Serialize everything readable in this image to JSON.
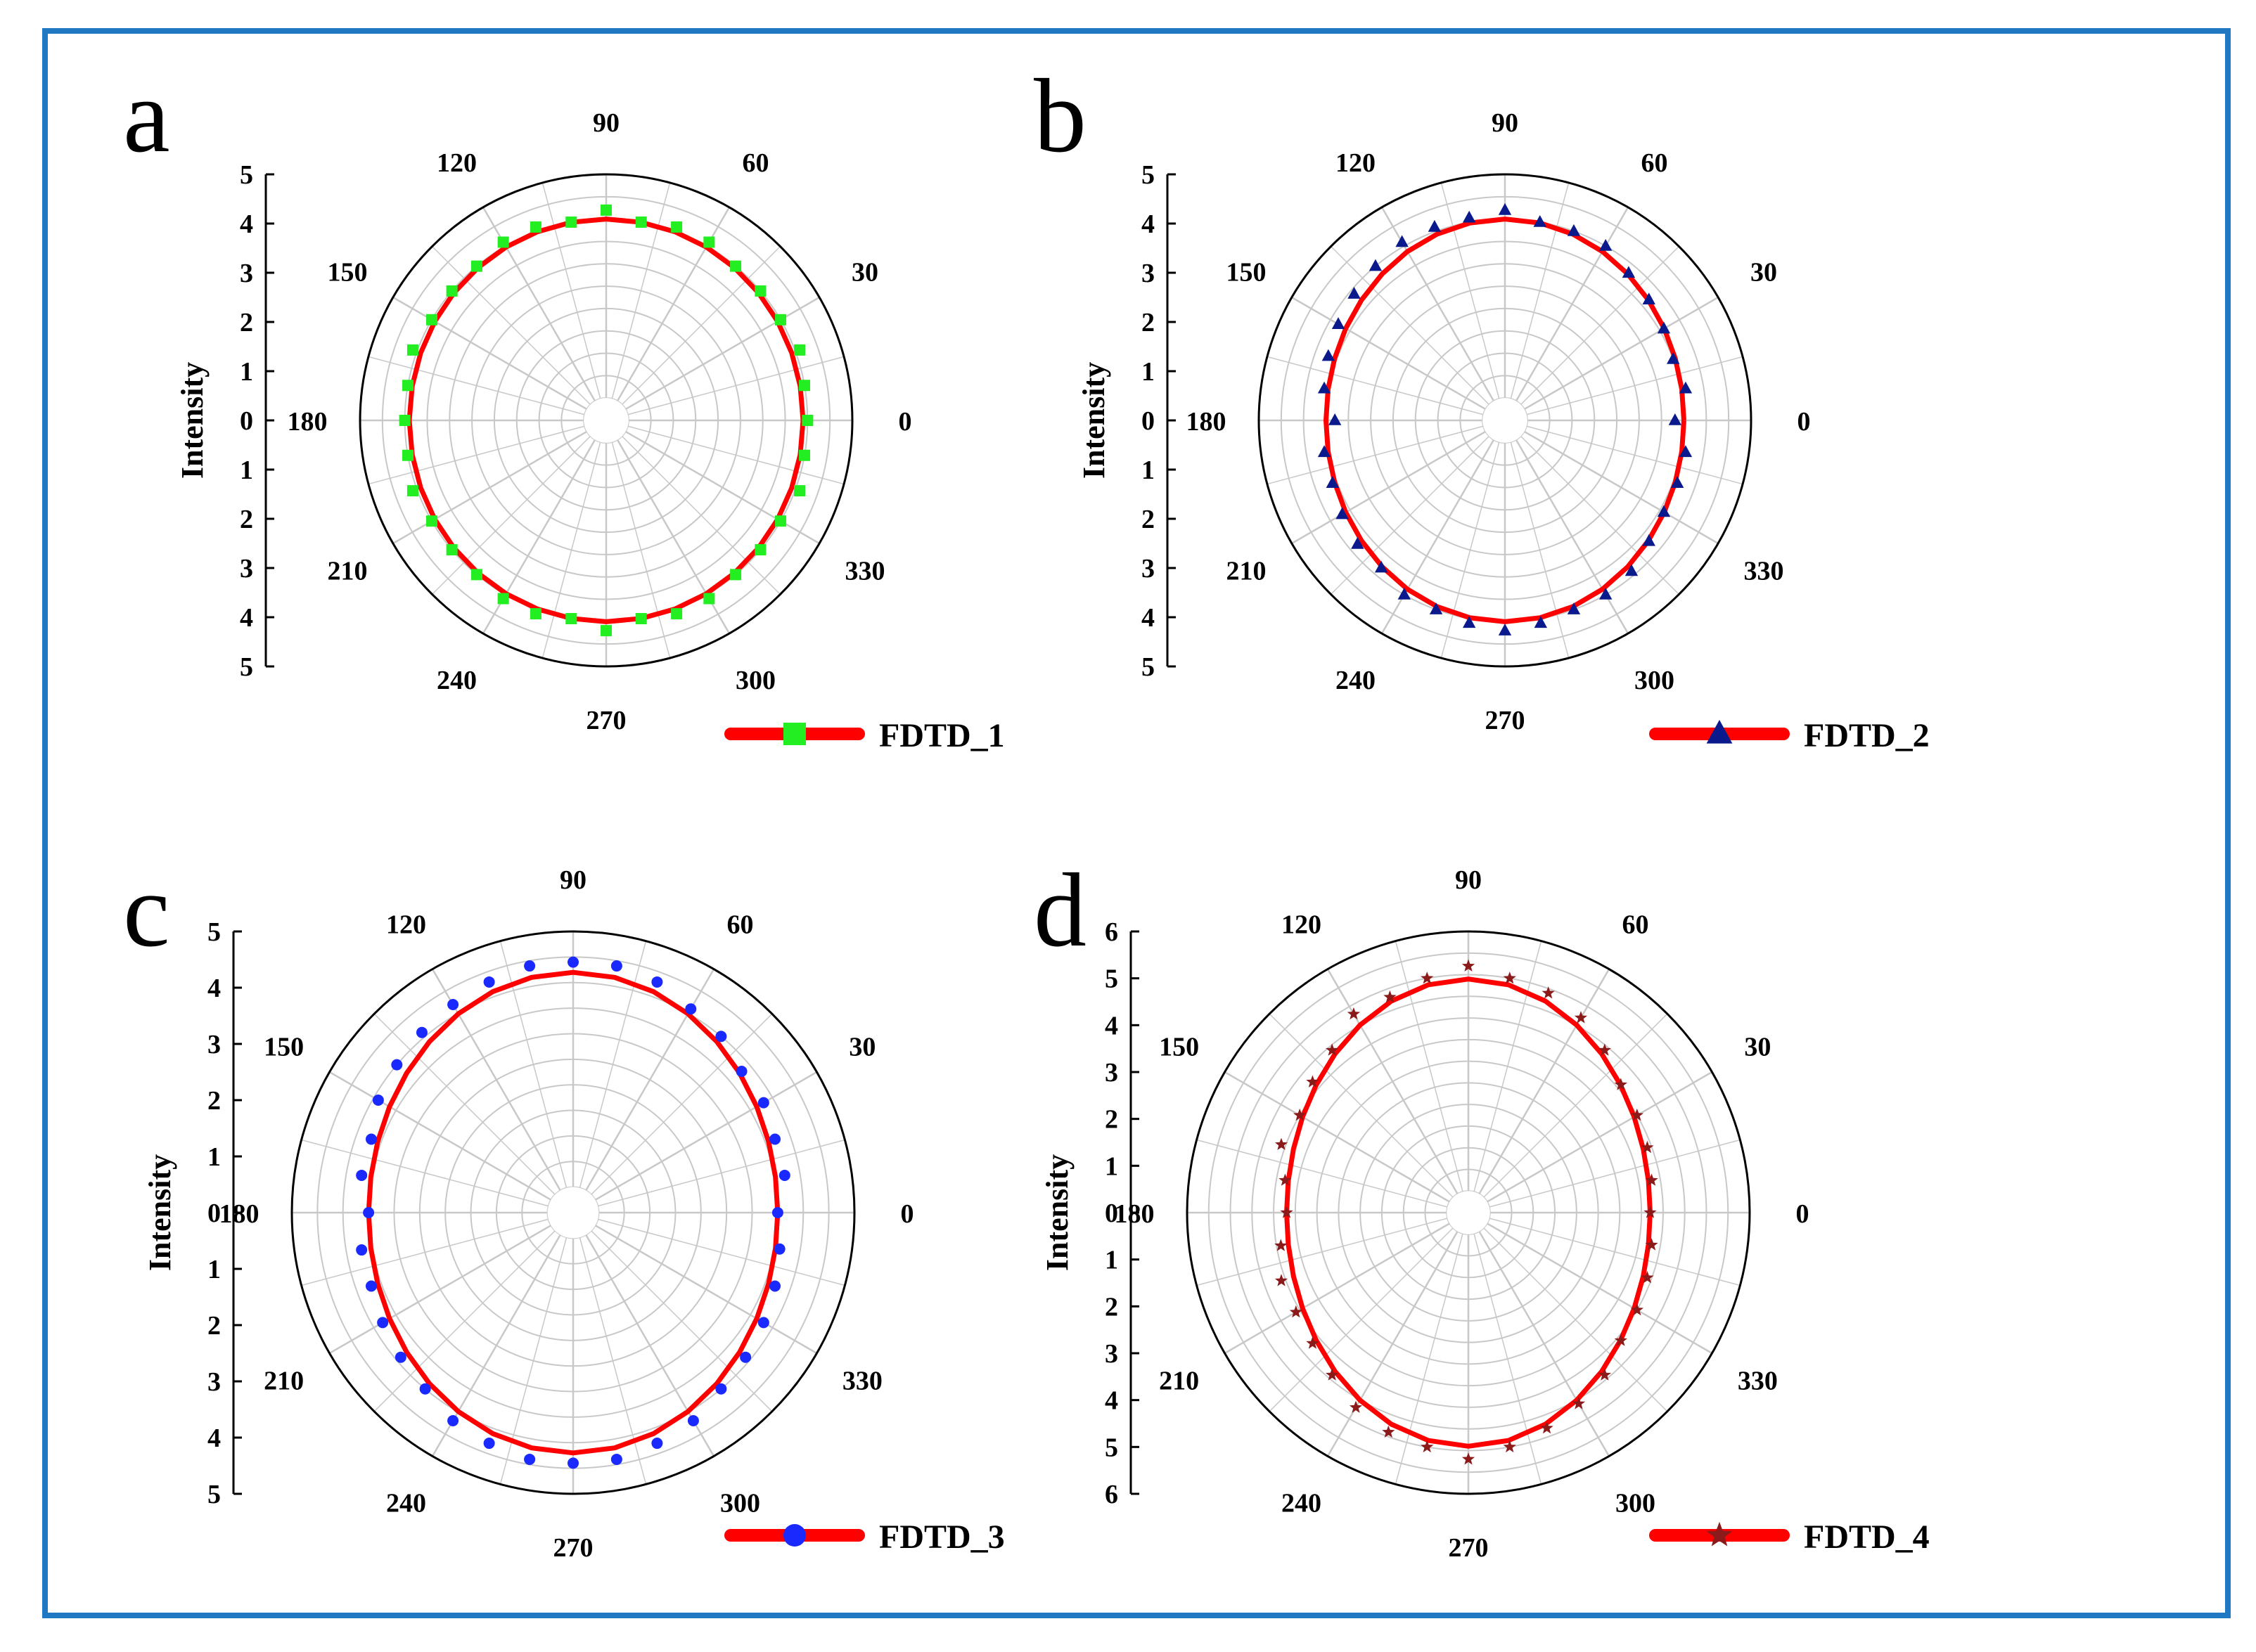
{
  "colors": {
    "frame": "#1f78c1",
    "fit_line": "#ff0000",
    "grid": "#c8c8c8",
    "outer_circle": "#000000"
  },
  "chart_data": [
    {
      "type": "polar",
      "panel": "a",
      "title": "",
      "ylabel": "Intensity",
      "r_ticks": [
        "5",
        "4",
        "3",
        "2",
        "1",
        "0",
        "1",
        "2",
        "3",
        "4",
        "5"
      ],
      "r_max": 5.5,
      "angle_labels": [
        "0",
        "30",
        "60",
        "90",
        "120",
        "150",
        "180",
        "210",
        "240",
        "270",
        "300",
        "330"
      ],
      "legend": "FDTD_1",
      "marker": "square",
      "marker_color": "#22ee22",
      "fit": {
        "a": 4.4,
        "b": 4.5
      },
      "points": {
        "theta_deg": [
          0,
          10,
          20,
          30,
          40,
          50,
          60,
          70,
          80,
          90,
          100,
          110,
          120,
          130,
          140,
          150,
          160,
          170,
          180,
          190,
          200,
          210,
          220,
          230,
          240,
          250,
          260,
          270,
          280,
          290,
          300,
          310,
          320,
          330,
          340,
          350
        ],
        "r": [
          4.5,
          4.5,
          4.6,
          4.5,
          4.5,
          4.5,
          4.6,
          4.6,
          4.5,
          4.7,
          4.5,
          4.6,
          4.6,
          4.5,
          4.5,
          4.5,
          4.6,
          4.5,
          4.5,
          4.5,
          4.6,
          4.5,
          4.5,
          4.5,
          4.6,
          4.6,
          4.5,
          4.7,
          4.5,
          4.6,
          4.6,
          4.5,
          4.5,
          4.5,
          4.6,
          4.5
        ]
      }
    },
    {
      "type": "polar",
      "panel": "b",
      "title": "",
      "ylabel": "Intensity",
      "r_ticks": [
        "5",
        "4",
        "3",
        "2",
        "1",
        "0",
        "1",
        "2",
        "3",
        "4",
        "5"
      ],
      "r_max": 5.5,
      "angle_labels": [
        "0",
        "30",
        "60",
        "90",
        "120",
        "150",
        "180",
        "210",
        "240",
        "270",
        "300",
        "330"
      ],
      "legend": "FDTD_2",
      "marker": "triangle",
      "marker_color": "#0a1a8c",
      "fit": {
        "a": 4.0,
        "b": 4.5
      },
      "points": {
        "theta_deg": [
          0,
          10,
          20,
          30,
          40,
          50,
          60,
          70,
          80,
          90,
          100,
          110,
          120,
          130,
          140,
          150,
          160,
          170,
          180,
          190,
          200,
          210,
          220,
          230,
          240,
          250,
          260,
          270,
          280,
          290,
          300,
          310,
          320,
          330,
          340,
          350
        ],
        "r": [
          3.8,
          4.1,
          4.0,
          4.1,
          4.2,
          4.3,
          4.5,
          4.5,
          4.5,
          4.7,
          4.6,
          4.6,
          4.6,
          4.5,
          4.4,
          4.3,
          4.2,
          4.1,
          3.8,
          4.1,
          4.1,
          4.2,
          4.3,
          4.3,
          4.5,
          4.5,
          4.6,
          4.7,
          4.6,
          4.5,
          4.5,
          4.4,
          4.2,
          4.1,
          4.1,
          4.1
        ]
      }
    },
    {
      "type": "polar",
      "panel": "c",
      "title": "",
      "ylabel": "Intensity",
      "r_ticks": [
        "5",
        "4",
        "3",
        "2",
        "1",
        "0",
        "1",
        "2",
        "3",
        "4",
        "5"
      ],
      "r_max": 5.5,
      "angle_labels": [
        "0",
        "30",
        "60",
        "90",
        "120",
        "150",
        "180",
        "210",
        "240",
        "270",
        "300",
        "330"
      ],
      "legend": "FDTD_3",
      "marker": "circle",
      "marker_color": "#1a2aff",
      "fit": {
        "a": 4.0,
        "b": 4.7
      },
      "points": {
        "theta_deg": [
          0,
          10,
          20,
          30,
          40,
          50,
          60,
          70,
          80,
          90,
          100,
          110,
          120,
          130,
          140,
          150,
          160,
          170,
          180,
          190,
          200,
          210,
          220,
          230,
          240,
          250,
          260,
          270,
          280,
          290,
          300,
          310,
          320,
          330,
          340,
          350
        ],
        "r": [
          4.0,
          4.2,
          4.2,
          4.3,
          4.3,
          4.5,
          4.6,
          4.8,
          4.9,
          4.9,
          4.9,
          4.8,
          4.7,
          4.6,
          4.5,
          4.4,
          4.2,
          4.2,
          4.0,
          4.2,
          4.2,
          4.3,
          4.4,
          4.5,
          4.7,
          4.8,
          4.9,
          4.9,
          4.9,
          4.8,
          4.7,
          4.5,
          4.4,
          4.3,
          4.2,
          4.1
        ]
      }
    },
    {
      "type": "polar",
      "panel": "d",
      "title": "",
      "ylabel": "Intensity",
      "r_ticks": [
        "6",
        "5",
        "4",
        "3",
        "2",
        "1",
        "0",
        "1",
        "2",
        "3",
        "4",
        "5",
        "6"
      ],
      "r_max": 6.5,
      "angle_labels": [
        "0",
        "30",
        "60",
        "90",
        "120",
        "150",
        "180",
        "210",
        "240",
        "270",
        "300",
        "330"
      ],
      "legend": "FDTD_4",
      "marker": "star",
      "marker_color": "#8b1a1a",
      "fit": {
        "a": 4.2,
        "b": 5.4
      },
      "points": {
        "theta_deg": [
          0,
          10,
          20,
          30,
          40,
          50,
          60,
          70,
          80,
          90,
          100,
          110,
          120,
          130,
          140,
          150,
          160,
          170,
          180,
          190,
          200,
          210,
          220,
          230,
          240,
          250,
          260,
          270,
          280,
          290,
          300,
          310,
          320,
          330,
          340,
          350
        ],
        "r": [
          4.2,
          4.3,
          4.4,
          4.5,
          4.6,
          4.9,
          5.2,
          5.4,
          5.5,
          5.7,
          5.5,
          5.3,
          5.3,
          4.9,
          4.7,
          4.5,
          4.6,
          4.3,
          4.2,
          4.4,
          4.6,
          4.6,
          4.7,
          4.9,
          5.2,
          5.4,
          5.5,
          5.7,
          5.5,
          5.3,
          5.1,
          4.9,
          4.6,
          4.5,
          4.4,
          4.3
        ]
      }
    }
  ]
}
